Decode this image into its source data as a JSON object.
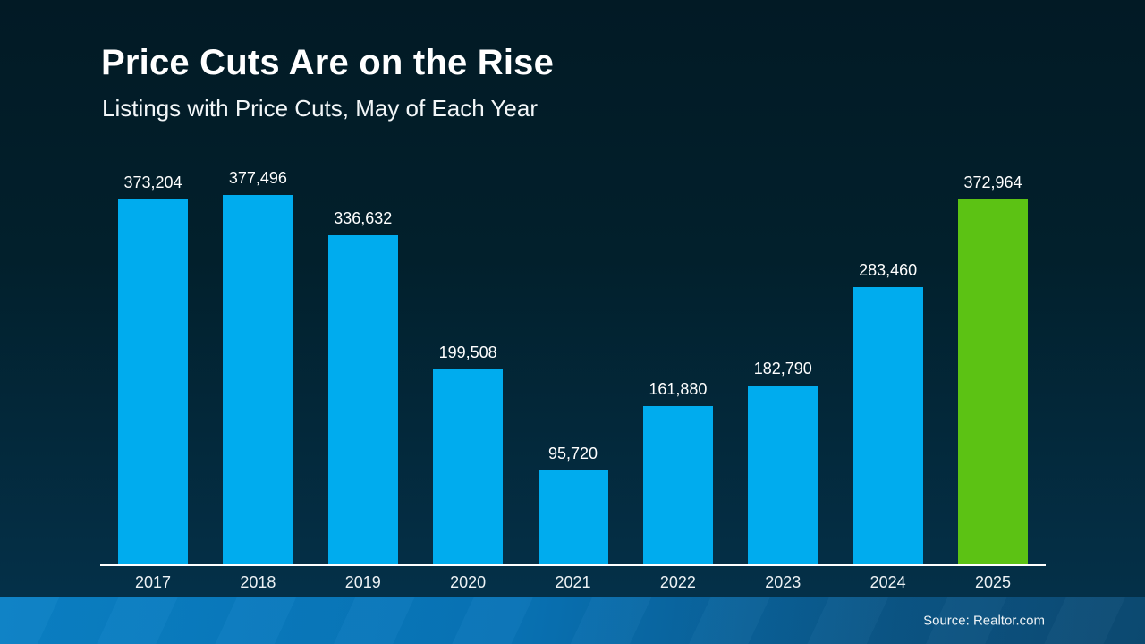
{
  "header": {
    "title": "Price Cuts Are on the Rise",
    "subtitle": "Listings with Price Cuts, May of Each Year"
  },
  "footer": {
    "source_label": "Source: Realtor.com"
  },
  "colors": {
    "background_top": "#021A25",
    "background_bottom": "#05334D",
    "bar_blue": "#00ACEE",
    "bar_green": "#5CC214",
    "axis_line": "#FFFFFF",
    "footer_left": "#0A80C5",
    "footer_right": "#0C4A72",
    "text": "#FFFFFF"
  },
  "chart_data": {
    "type": "bar",
    "title": "Price Cuts Are on the Rise",
    "subtitle": "Listings with Price Cuts, May of Each Year",
    "categories": [
      "2017",
      "2018",
      "2019",
      "2020",
      "2021",
      "2022",
      "2023",
      "2024",
      "2025"
    ],
    "values": [
      373204,
      377496,
      336632,
      199508,
      95720,
      161880,
      182790,
      283460,
      372964
    ],
    "value_labels": [
      "373,204",
      "377,496",
      "336,632",
      "199,508",
      "95,720",
      "161,880",
      "182,790",
      "283,460",
      "372,964"
    ],
    "highlight_index": 8,
    "bar_color": "#00ACEE",
    "highlight_color": "#5CC214",
    "ylim": [
      0,
      377496
    ],
    "grid": false,
    "legend": null,
    "value_labels_position": "above-bars",
    "source": "Source: Realtor.com"
  }
}
